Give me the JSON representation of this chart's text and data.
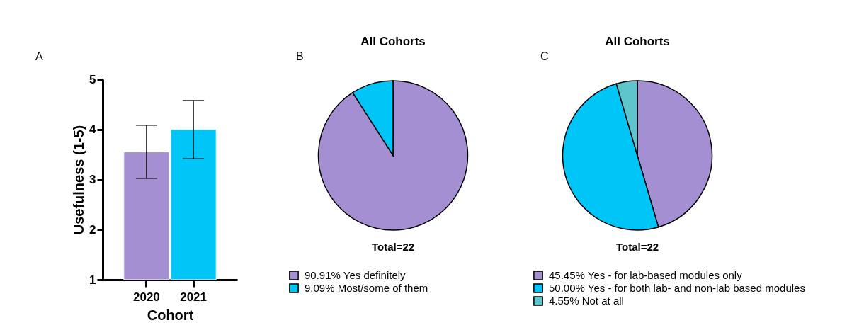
{
  "chart_data": [
    {
      "type": "bar",
      "categories": [
        "2020",
        "2021"
      ],
      "values": [
        3.55,
        4.0
      ],
      "colors": [
        "#a48fd3",
        "#00c5f7"
      ],
      "errors": [
        [
          3.02,
          4.08
        ],
        [
          3.42,
          4.58
        ]
      ],
      "xlabel": "Cohort",
      "ylabel": "Usefulness (1-5)",
      "ylim": [
        1,
        5
      ],
      "yticks": [
        1,
        2,
        3,
        4,
        5
      ],
      "grid": false,
      "annotations": [
        "A"
      ]
    },
    {
      "type": "pie",
      "title": "All Cohorts",
      "categories": [
        "90.91%  Yes definitely",
        "9.09%  Most/some of them"
      ],
      "values": [
        90.91,
        9.09
      ],
      "colors": [
        "#a48fd3",
        "#00c5f7"
      ],
      "legend": "bottom",
      "annotations": [
        "B",
        "Total=22"
      ]
    },
    {
      "type": "pie",
      "title": "All Cohorts",
      "categories": [
        "45.45%  Yes - for lab-based modules only",
        "50.00%  Yes - for both lab- and non-lab based modules",
        "4.55%  Not at all"
      ],
      "values": [
        45.45,
        50.0,
        4.55
      ],
      "colors": [
        "#a48fd3",
        "#00c5f7",
        "#5fc5cc"
      ],
      "legend": "bottom",
      "annotations": [
        "C",
        "Total=22"
      ]
    }
  ]
}
